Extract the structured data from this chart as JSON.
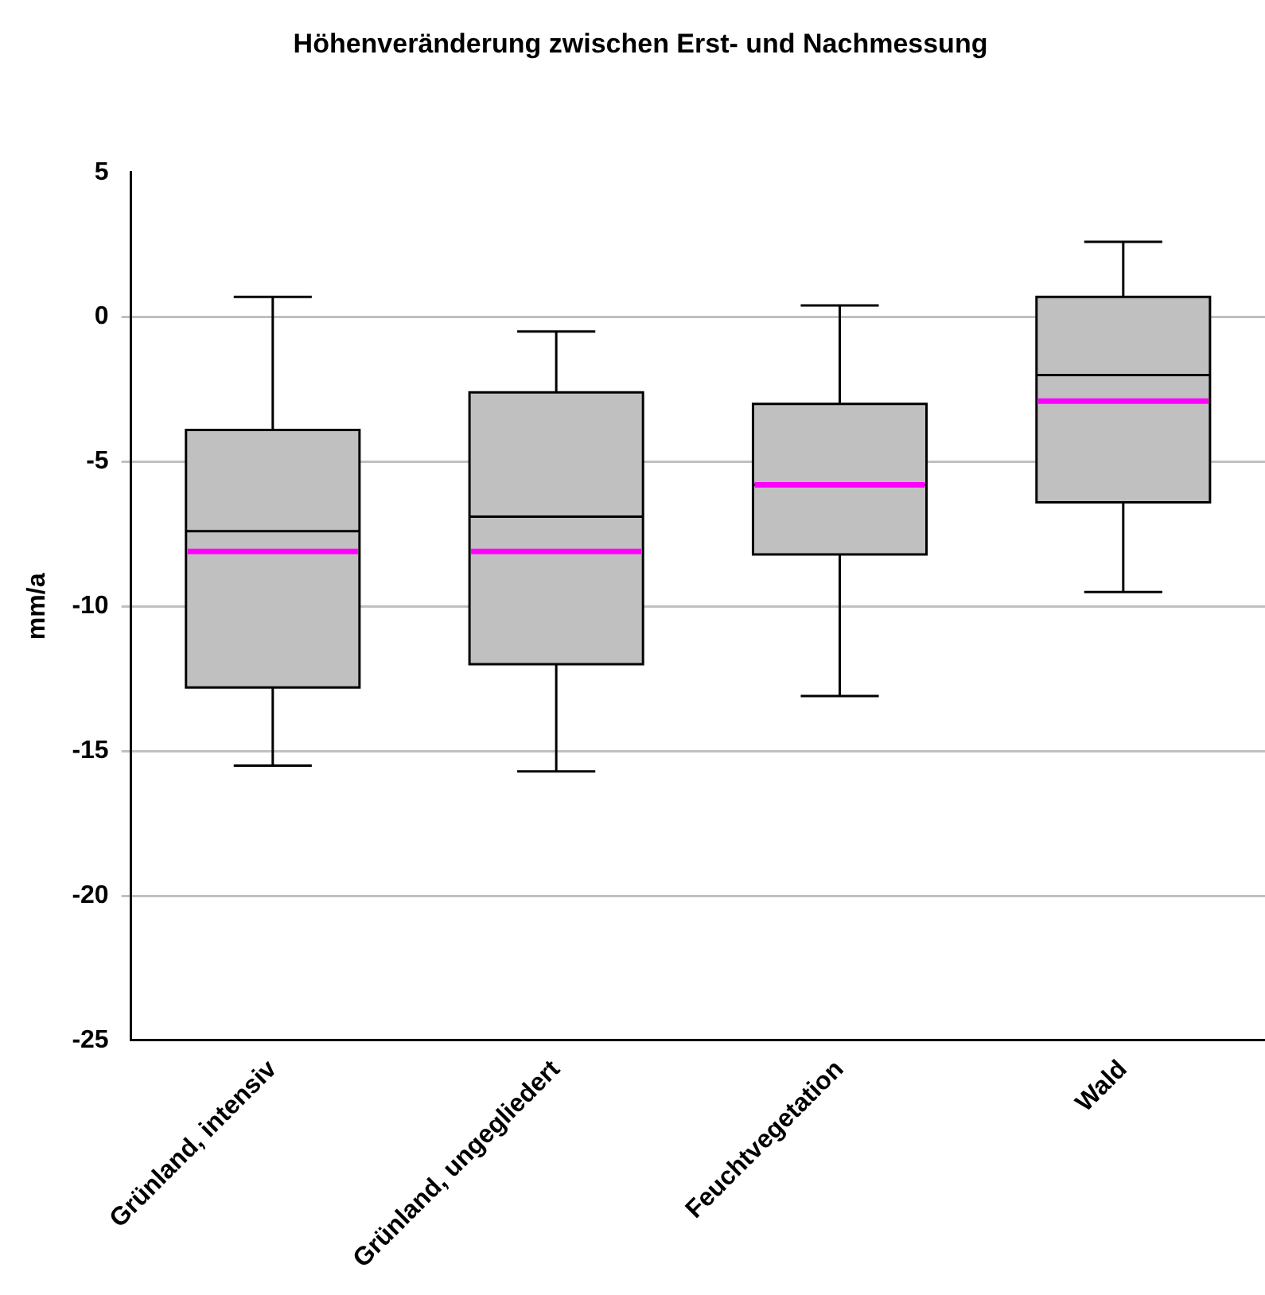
{
  "chart_data": {
    "type": "box",
    "title": "Höhenveränderung zwischen Erst- und Nachmessung",
    "ylabel": "mm/a",
    "categories": [
      "Grünland, intensiv",
      "Grünland, ungegliedert",
      "Feuchtvegetation",
      "Wald"
    ],
    "series": [
      {
        "color": "#c0c0c0",
        "boxes": [
          {
            "low": -15.5,
            "q1": -12.8,
            "median": -7.4,
            "q3": -3.9,
            "high": 0.7,
            "mean": -8.1
          },
          {
            "low": -15.7,
            "q1": -12.0,
            "median": -6.9,
            "q3": -2.6,
            "high": -0.5,
            "mean": -8.1
          },
          {
            "low": -13.1,
            "q1": -8.2,
            "median": -5.8,
            "q3": -3.0,
            "high": 0.4,
            "mean": -5.8
          },
          {
            "low": -9.5,
            "q1": -6.4,
            "median": -2.0,
            "q3": 0.7,
            "high": 2.6,
            "mean": -2.9
          }
        ]
      }
    ],
    "ylim": [
      -25,
      5
    ],
    "yticks": [
      -25,
      -20,
      -15,
      -10,
      -5,
      0,
      5
    ],
    "grid": "y",
    "legend": false
  }
}
